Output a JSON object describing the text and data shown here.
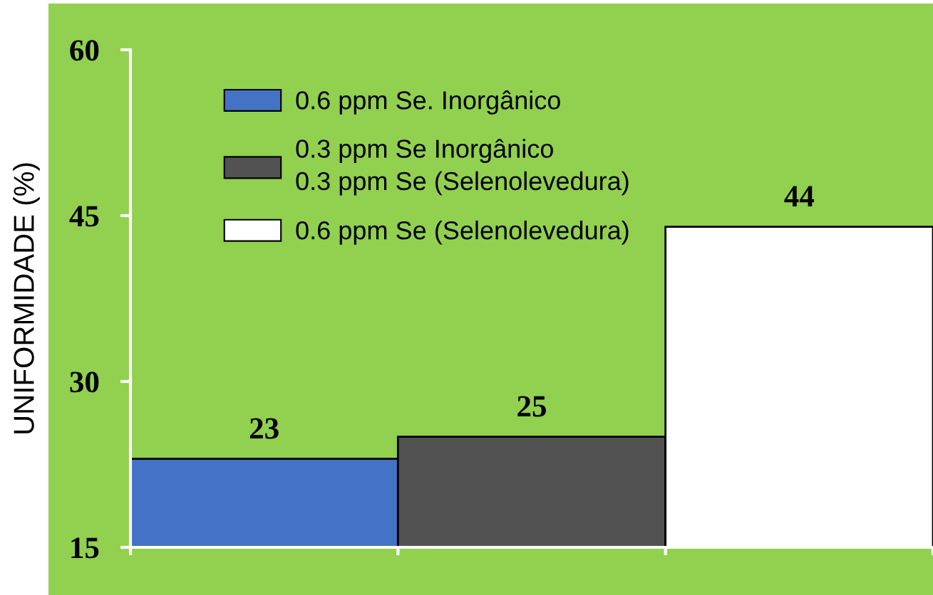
{
  "chart_data": {
    "type": "bar",
    "ylabel": "UNIFORMIDADE (%)",
    "categories": [
      null,
      null,
      null
    ],
    "series": [
      {
        "name": "0.6 ppm Se. Inorgânico",
        "color": "#4472c4",
        "values": [
          23,
          null,
          null
        ]
      },
      {
        "name": "0.3 ppm Se Inorgânico\n0.3 ppm Se (Selenolevedura)",
        "color": "#525252",
        "values": [
          null,
          25,
          null
        ]
      },
      {
        "name": "0.6 ppm Se (Selenolevedura)",
        "color": "#ffffff",
        "values": [
          null,
          null,
          44
        ]
      }
    ],
    "ylim": [
      15,
      60
    ],
    "yticks": [
      15,
      30,
      45,
      60
    ],
    "data_labels": true,
    "legend": "top left",
    "tick_labels": "y",
    "grid": false
  }
}
